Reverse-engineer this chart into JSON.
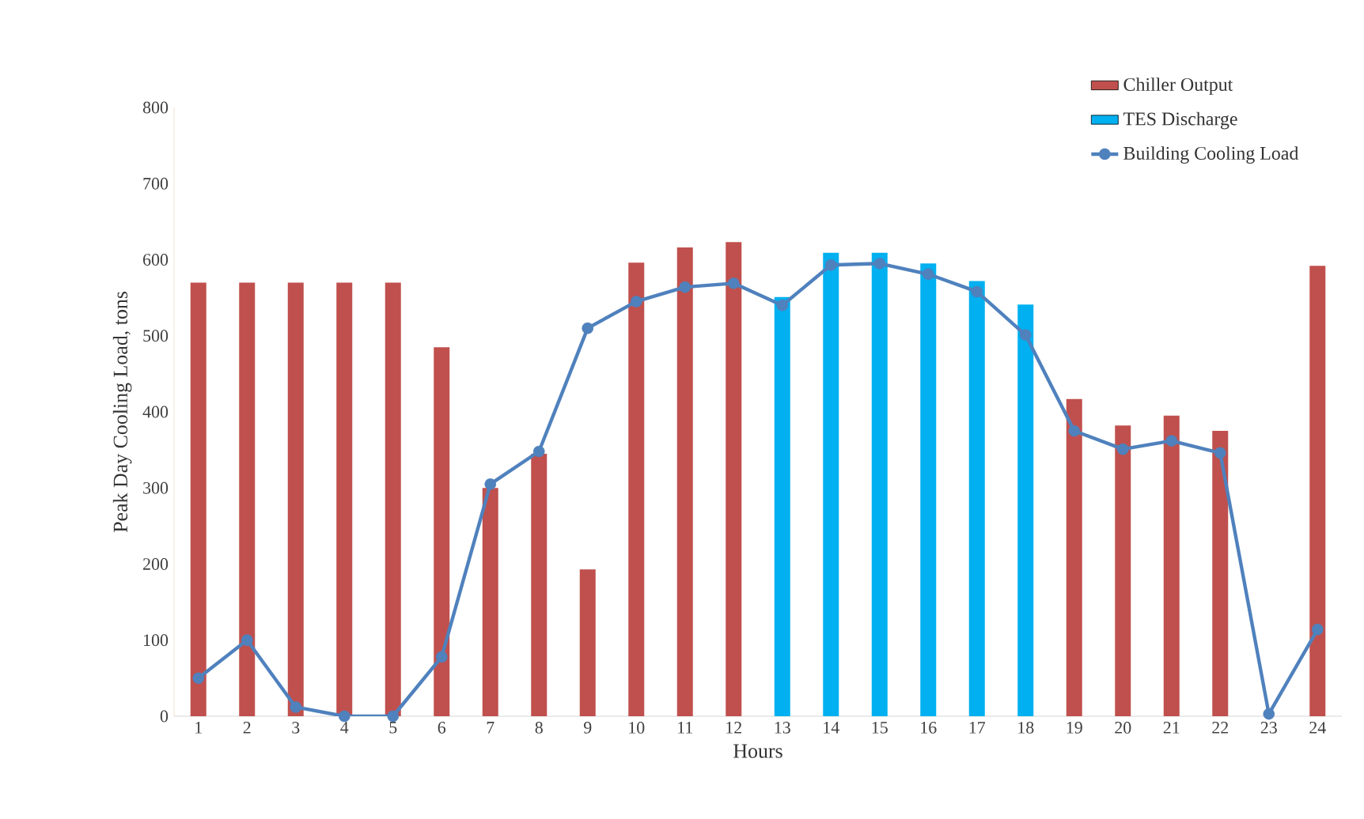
{
  "chart_data": {
    "type": "bar",
    "xlabel": "Hours",
    "ylabel": "Peak Day Cooling Load, tons",
    "categories": [
      "1",
      "2",
      "3",
      "4",
      "5",
      "6",
      "7",
      "8",
      "9",
      "10",
      "11",
      "12",
      "13",
      "14",
      "15",
      "16",
      "17",
      "18",
      "19",
      "20",
      "21",
      "22",
      "23",
      "24"
    ],
    "series": [
      {
        "name": "Chiller Output",
        "color": "#c0504d",
        "values": [
          570,
          570,
          570,
          570,
          570,
          485,
          300,
          345,
          193,
          596,
          616,
          623,
          null,
          null,
          null,
          null,
          null,
          null,
          417,
          382,
          395,
          375,
          null,
          592
        ]
      },
      {
        "name": "TES Discharge",
        "color": "#00b0f0",
        "values": [
          null,
          null,
          null,
          null,
          null,
          null,
          null,
          null,
          null,
          null,
          null,
          null,
          551,
          609,
          609,
          595,
          572,
          541,
          null,
          null,
          null,
          null,
          null,
          null
        ]
      },
      {
        "name": "Building Cooling Load",
        "type": "line",
        "color": "#4f81bd",
        "marker": "circle",
        "values": [
          50,
          100,
          12,
          0,
          0,
          78,
          305,
          348,
          510,
          545,
          564,
          569,
          540,
          593,
          595,
          581,
          558,
          501,
          375,
          351,
          362,
          346,
          3,
          114
        ]
      }
    ],
    "ylim": [
      0,
      800
    ],
    "yticks": [
      0,
      100,
      200,
      300,
      400,
      500,
      600,
      700,
      800
    ],
    "grid": false,
    "legend": "top right"
  }
}
